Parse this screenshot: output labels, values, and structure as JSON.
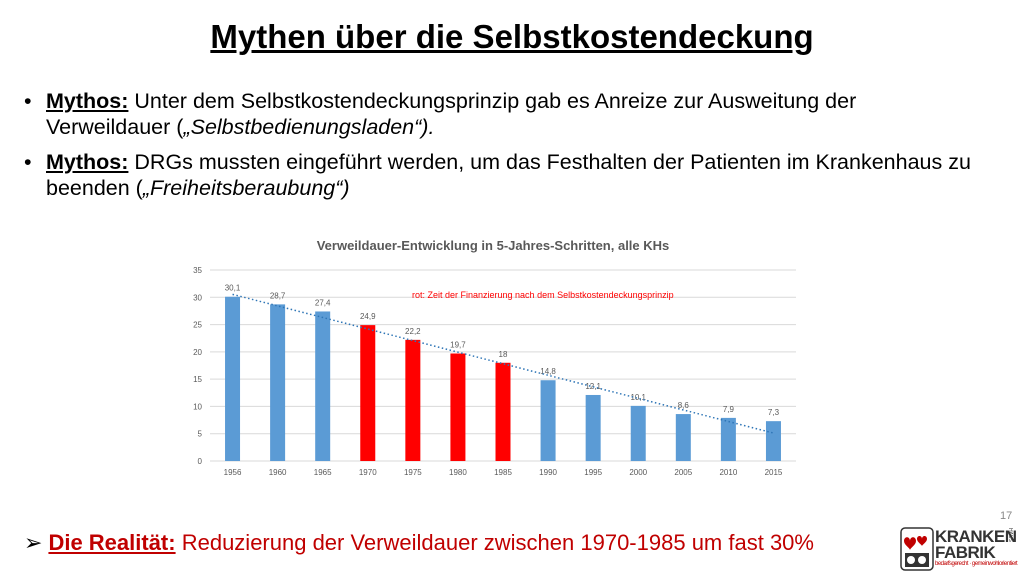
{
  "title": "Mythen über die Selbstkostendeckung",
  "bullets": [
    {
      "symbol": "•",
      "label": "Mythos:",
      "text_before": " Unter dem Selbstkostendeckungsprinzip gab es Anreize zur Ausweitung der Verweildauer (",
      "italic": "„Selbstbedienungsladen“).",
      "text_after": ""
    },
    {
      "symbol": "•",
      "label": "Mythos:",
      "text_before": " DRGs mussten eingeführt werden, um das Festhalten der Patienten im Krankenhaus zu beenden (",
      "italic": "„Freiheitsberaubung“)",
      "text_after": ""
    }
  ],
  "chart_data": {
    "type": "bar",
    "title": "Verweildauer-Entwicklung in 5-Jahres-Schritten, alle KHs",
    "categories": [
      "1956",
      "1960",
      "1965",
      "1970",
      "1975",
      "1980",
      "1985",
      "1990",
      "1995",
      "2000",
      "2005",
      "2010",
      "2015"
    ],
    "values": [
      30.1,
      28.7,
      27.4,
      24.9,
      22.2,
      19.7,
      18,
      14.8,
      12.1,
      10.1,
      8.6,
      7.9,
      7.3
    ],
    "value_labels": [
      "30,1",
      "28,7",
      "27,4",
      "24,9",
      "22,2",
      "19,7",
      "18",
      "14,8",
      "12,1",
      "10,1",
      "8,6",
      "7,9",
      "7,3"
    ],
    "bar_colors": [
      "#5b9bd5",
      "#5b9bd5",
      "#5b9bd5",
      "#ff0000",
      "#ff0000",
      "#ff0000",
      "#ff0000",
      "#5b9bd5",
      "#5b9bd5",
      "#5b9bd5",
      "#5b9bd5",
      "#5b9bd5",
      "#5b9bd5"
    ],
    "ylim": [
      0,
      35
    ],
    "yticks": [
      0,
      5,
      10,
      15,
      20,
      25,
      30,
      35
    ],
    "grid": true,
    "trendline": "linear, dotted",
    "trend_color": "#2e75b6",
    "annotation": "rot: Zeit der Finanzierung  nach dem Selbstkostendeckungsprinzip",
    "annotation_color": "#ff0000",
    "xlabel": "",
    "ylabel": ""
  },
  "reality": {
    "arrow": "➢",
    "label": "Die Realität:",
    "text": " Reduzierung der Verweildauer zwischen 1970-1985 um fast 30%"
  },
  "page_number": "17",
  "logo": {
    "line1": "KRANKEN",
    "line2": "FABRIK",
    "tagline": "bedarfsgerecht · gemeinwohlorientiert",
    "side": "HAUS",
    "icon": "hearts-factory-icon"
  }
}
